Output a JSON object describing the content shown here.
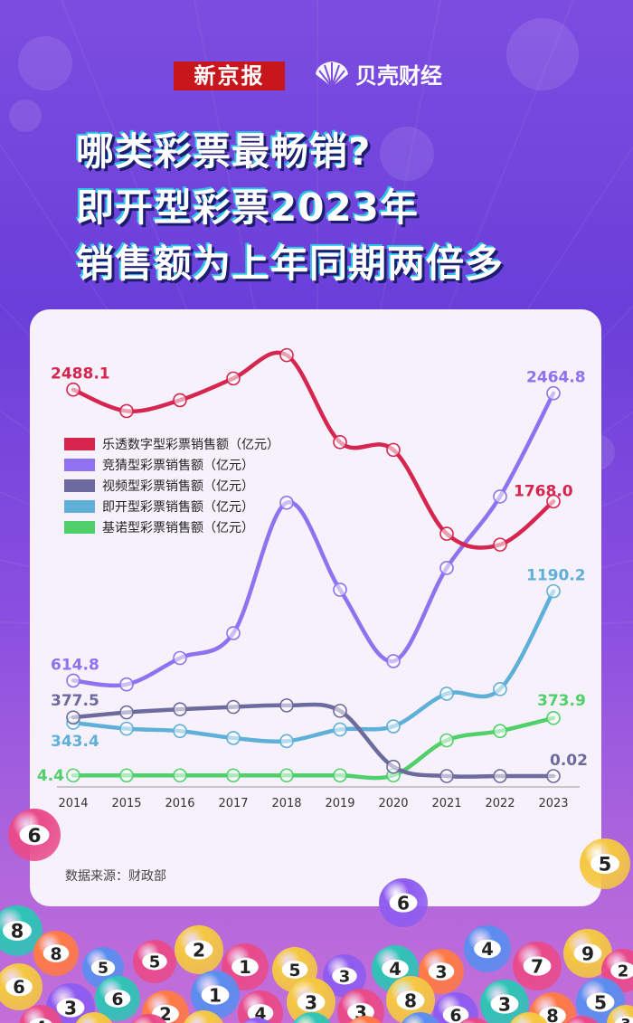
{
  "branding": {
    "newspaper": "新京报",
    "media": "贝壳财经"
  },
  "headline": {
    "line1": "哪类彩票最畅销?",
    "line2": "即开型彩票2023年",
    "line3": "销售额为上年同期两倍多"
  },
  "source": "数据来源：财政部",
  "colors": {
    "lotto": "#d6264f",
    "jingcai": "#8e72f0",
    "video": "#6d6a9e",
    "instant": "#5fb0d9",
    "keno": "#4fd06a"
  },
  "chart_data": {
    "type": "line",
    "title": "",
    "xlabel": "",
    "ylabel": "",
    "x": [
      "2014",
      "2015",
      "2016",
      "2017",
      "2018",
      "2019",
      "2020",
      "2021",
      "2022",
      "2023"
    ],
    "ylim": [
      0,
      2900
    ],
    "grid": false,
    "legend_position": "left-middle",
    "series": [
      {
        "name": "乐透数字型彩票销售额（亿元）",
        "color": "#d6264f",
        "values": [
          2488.1,
          2350,
          2420,
          2560,
          2710,
          2150,
          2100,
          1560,
          1490,
          1768.0
        ],
        "labels": {
          "0": "2488.1",
          "9": "1768.0"
        }
      },
      {
        "name": "竞猜型彩票销售额（亿元）",
        "color": "#8e72f0",
        "values": [
          614.8,
          590,
          760,
          920,
          1760,
          1200,
          740,
          1340,
          1800,
          2464.8
        ],
        "labels": {
          "0": "614.8",
          "9": "2464.8"
        }
      },
      {
        "name": "视频型彩票销售额（亿元）",
        "color": "#6d6a9e",
        "values": [
          377.5,
          410,
          430,
          445,
          455,
          420,
          60,
          0.02,
          0.02,
          0.02
        ],
        "labels": {
          "0": "377.5",
          "9": "0.02"
        }
      },
      {
        "name": "即开型彩票销售额（亿元）",
        "color": "#5fb0d9",
        "values": [
          343.4,
          305,
          290,
          245,
          225,
          300,
          320,
          530,
          560,
          1190.2
        ],
        "labels": {
          "0": "343.4",
          "9": "1190.2"
        }
      },
      {
        "name": "基诺型彩票销售额（亿元）",
        "color": "#4fd06a",
        "values": [
          4.4,
          4.4,
          4.4,
          4.4,
          4.4,
          4.4,
          4.4,
          230,
          290,
          373.9
        ],
        "labels": {
          "0": "4.4",
          "9": "373.9"
        }
      }
    ]
  },
  "balls": [
    "6",
    "5",
    "6",
    "8",
    "8",
    "5",
    "5",
    "2",
    "1",
    "5",
    "3",
    "4",
    "3",
    "4",
    "7",
    "9",
    "2",
    "6",
    "3",
    "6",
    "2",
    "1",
    "4",
    "3",
    "3",
    "8",
    "6",
    "3",
    "8",
    "5",
    "4",
    "9",
    "8",
    "6",
    "4",
    "5",
    "7",
    "2",
    "3",
    "3",
    "6",
    "3"
  ]
}
